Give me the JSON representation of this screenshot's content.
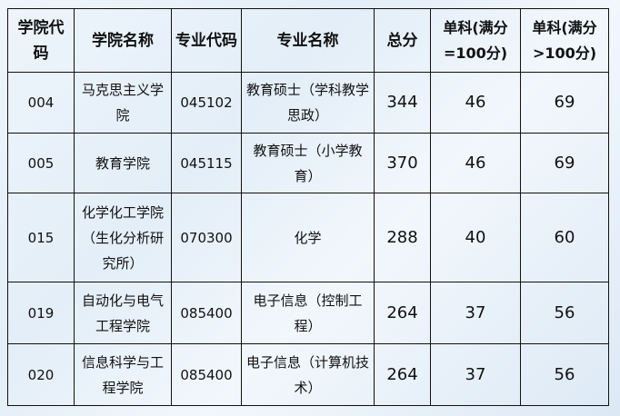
{
  "table": {
    "headers": [
      "学院代码",
      "学院名称",
      "专业代码",
      "专业名称",
      "总分",
      "单科(满分=100分)",
      "单科(满分>100分)"
    ],
    "rows": [
      [
        "004",
        "马克思主义学院",
        "045102",
        "教育硕士（学科教学思政）",
        "344",
        "46",
        "69"
      ],
      [
        "005",
        "教育学院",
        "045115",
        "教育硕士（小学教育）",
        "370",
        "46",
        "69"
      ],
      [
        "015",
        "化学化工学院（生化分析研究所）",
        "070300",
        "化学",
        "288",
        "40",
        "60"
      ],
      [
        "019",
        "自动化与电气工程学院",
        "085400",
        "电子信息（控制工程）",
        "264",
        "37",
        "56"
      ],
      [
        "020",
        "信息科学与工程学院",
        "085400",
        "电子信息（计算机技术）",
        "264",
        "37",
        "56"
      ]
    ]
  }
}
